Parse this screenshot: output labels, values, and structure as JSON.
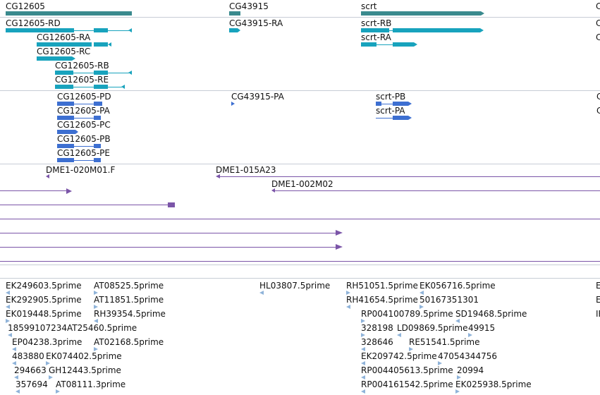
{
  "colors": {
    "gene": "#3a8a8e",
    "transcript": "#18a3bd",
    "protein": "#3d6fd1",
    "clone": "#7b55a8",
    "est": "#8fb3d9",
    "separator": "#c7cdd6"
  },
  "tracks": {
    "genes": [
      {
        "label": "CG12605"
      },
      {
        "label": "CG43915"
      },
      {
        "label": "scrt"
      },
      {
        "label": "C"
      }
    ],
    "transcripts": [
      {
        "label": "CG12605-RD"
      },
      {
        "label": "CG12605-RA"
      },
      {
        "label": "CG12605-RC"
      },
      {
        "label": "CG12605-RB"
      },
      {
        "label": "CG12605-RE"
      },
      {
        "label": "CG43915-RA"
      },
      {
        "label": "scrt-RB"
      },
      {
        "label": "scrt-RA"
      },
      {
        "label": "C"
      },
      {
        "label": "C"
      }
    ],
    "proteins": [
      {
        "label": "CG12605-PD"
      },
      {
        "label": "CG12605-PA"
      },
      {
        "label": "CG12605-PC"
      },
      {
        "label": "CG12605-PB"
      },
      {
        "label": "CG12605-PE"
      },
      {
        "label": "CG43915-PA"
      },
      {
        "label": "scrt-PB"
      },
      {
        "label": "scrt-PA"
      },
      {
        "label": "C"
      },
      {
        "label": "C"
      }
    ],
    "clones": [
      {
        "label": "DME1-020M01.F"
      },
      {
        "label": "DME1-015A23"
      },
      {
        "label": "DME1-002M02"
      }
    ],
    "ests": [
      {
        "label": "EK249603.5prime"
      },
      {
        "label": "AT08525.5prime"
      },
      {
        "label": "HL03807.5prime"
      },
      {
        "label": "RH51051.5prime"
      },
      {
        "label": "EK056716.5prime"
      },
      {
        "label": "EK292905.5prime"
      },
      {
        "label": "AT11851.5prime"
      },
      {
        "label": "RH41654.5prime"
      },
      {
        "label": "50167351301"
      },
      {
        "label": "EK019448.5prime"
      },
      {
        "label": "RH39354.5prime"
      },
      {
        "label": "RP004100789.5prime"
      },
      {
        "label": "SD19468.5prime"
      },
      {
        "label": "18599107234AT25460.5prime"
      },
      {
        "label": "328198"
      },
      {
        "label": "LD09869.5prime"
      },
      {
        "label": "49915"
      },
      {
        "label": "EP04238.3prime"
      },
      {
        "label": "AT02168.5prime"
      },
      {
        "label": "328646"
      },
      {
        "label": "RE51541.5prime"
      },
      {
        "label": "483880"
      },
      {
        "label": "EK074402.5prime"
      },
      {
        "label": "EK209742.5prime"
      },
      {
        "label": "47054344756"
      },
      {
        "label": "294663"
      },
      {
        "label": "GH12443.5prime"
      },
      {
        "label": "RP004405613.5prime"
      },
      {
        "label": "20994"
      },
      {
        "label": "357694"
      },
      {
        "label": "AT08111.3prime"
      },
      {
        "label": "RP004161542.5prime"
      },
      {
        "label": "EK025938.5prime"
      },
      {
        "label": "E"
      },
      {
        "label": "E"
      },
      {
        "label": "IF"
      }
    ]
  }
}
